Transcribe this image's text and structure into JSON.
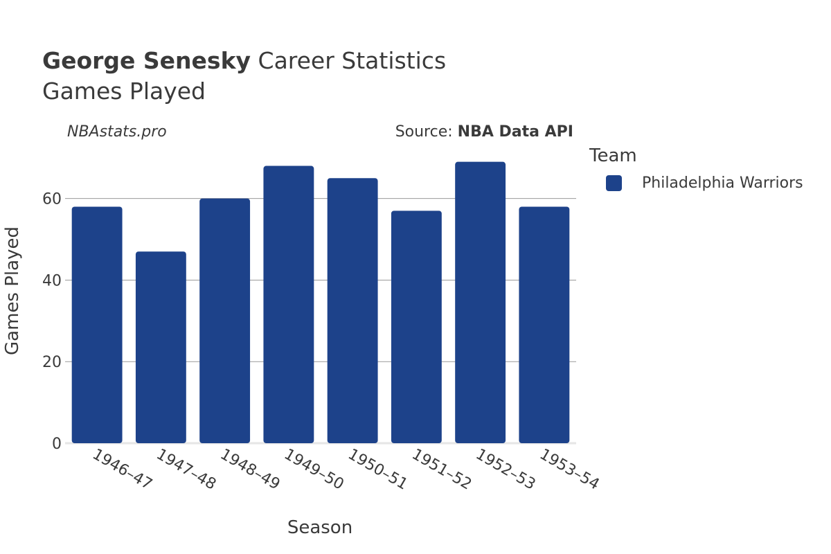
{
  "header": {
    "player_name": "George Senesky",
    "title_rest": " Career Statistics",
    "subtitle": "Games Played"
  },
  "watermark": "NBAstats.pro",
  "source": {
    "prefix": "Source: ",
    "name": "NBA Data API"
  },
  "legend": {
    "title": "Team",
    "items": [
      {
        "label": "Philadelphia Warriors",
        "color": "#1d428a"
      }
    ]
  },
  "chart_data": {
    "type": "bar",
    "categories": [
      "1946–47",
      "1947–48",
      "1948–49",
      "1949–50",
      "1950–51",
      "1951–52",
      "1952–53",
      "1953–54"
    ],
    "series": [
      {
        "name": "Philadelphia Warriors",
        "values": [
          58,
          47,
          60,
          68,
          65,
          57,
          69,
          58
        ],
        "color": "#1d428a"
      }
    ],
    "title": "George Senesky Career Statistics",
    "subtitle": "Games Played",
    "xlabel": "Season",
    "ylabel": "Games Played",
    "ylim": [
      0,
      72
    ],
    "yticks": [
      0,
      20,
      40,
      60
    ],
    "grid": true,
    "legend_position": "right"
  }
}
